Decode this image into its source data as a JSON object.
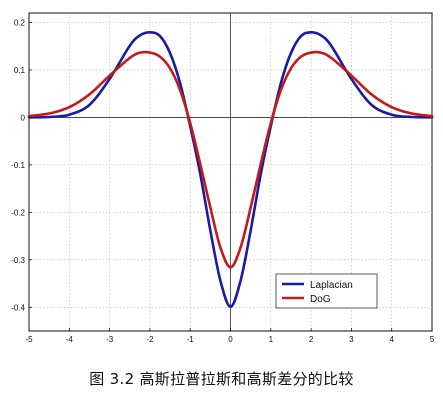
{
  "caption": "图 3.2 高斯拉普拉斯和高斯差分的比较",
  "chart_data": {
    "type": "line",
    "title": "",
    "xlabel": "",
    "ylabel": "",
    "xlim": [
      -5,
      5
    ],
    "ylim": [
      -0.45,
      0.22
    ],
    "xticks": [
      -5,
      -4,
      -3,
      -2,
      -1,
      0,
      1,
      2,
      3,
      4,
      5
    ],
    "yticks": [
      0.2,
      0.1,
      0,
      -0.1,
      -0.2,
      -0.3,
      -0.4
    ],
    "grid": true,
    "legend_position": "bottom-right",
    "series": [
      {
        "name": "Laplacian",
        "color": "#1a1aa8",
        "x": [
          -5,
          -4.5,
          -4,
          -3.5,
          -3,
          -2.5,
          -2.25,
          -2,
          -1.75,
          -1.5,
          -1.25,
          -1,
          -0.75,
          -0.5,
          -0.25,
          0,
          0.25,
          0.5,
          0.75,
          1,
          1.25,
          1.5,
          1.75,
          2,
          2.25,
          2.5,
          3,
          3.5,
          4,
          4.5,
          5
        ],
        "y": [
          0.0001,
          0.0009,
          0.0057,
          0.0265,
          0.0811,
          0.151,
          0.1727,
          0.1794,
          0.1714,
          0.1356,
          0.0721,
          -0.0184,
          -0.1195,
          -0.2384,
          -0.3441,
          -0.3989,
          -0.3441,
          -0.2384,
          -0.1195,
          -0.0184,
          0.0721,
          0.1356,
          0.1714,
          0.1794,
          0.1727,
          0.151,
          0.0811,
          0.0265,
          0.0057,
          0.0009,
          0.0001
        ]
      },
      {
        "name": "DoG",
        "color": "#c41a1a",
        "x": [
          -5,
          -4.5,
          -4,
          -3.5,
          -3,
          -2.5,
          -2.25,
          -2,
          -1.75,
          -1.5,
          -1.25,
          -1,
          -0.75,
          -0.5,
          -0.25,
          0,
          0.25,
          0.5,
          0.75,
          1,
          1.25,
          1.5,
          1.75,
          2,
          2.25,
          2.5,
          3,
          3.5,
          4,
          4.5,
          5
        ],
        "y": [
          0.0029,
          0.0082,
          0.0216,
          0.0484,
          0.0881,
          0.1254,
          0.1362,
          0.1367,
          0.1281,
          0.1033,
          0.0575,
          -0.0117,
          -0.0983,
          -0.1898,
          -0.2741,
          -0.3159,
          -0.2741,
          -0.1898,
          -0.0983,
          -0.0117,
          0.0575,
          0.1033,
          0.1281,
          0.1367,
          0.1362,
          0.1254,
          0.0881,
          0.0484,
          0.0216,
          0.0082,
          0.0029
        ]
      }
    ]
  }
}
